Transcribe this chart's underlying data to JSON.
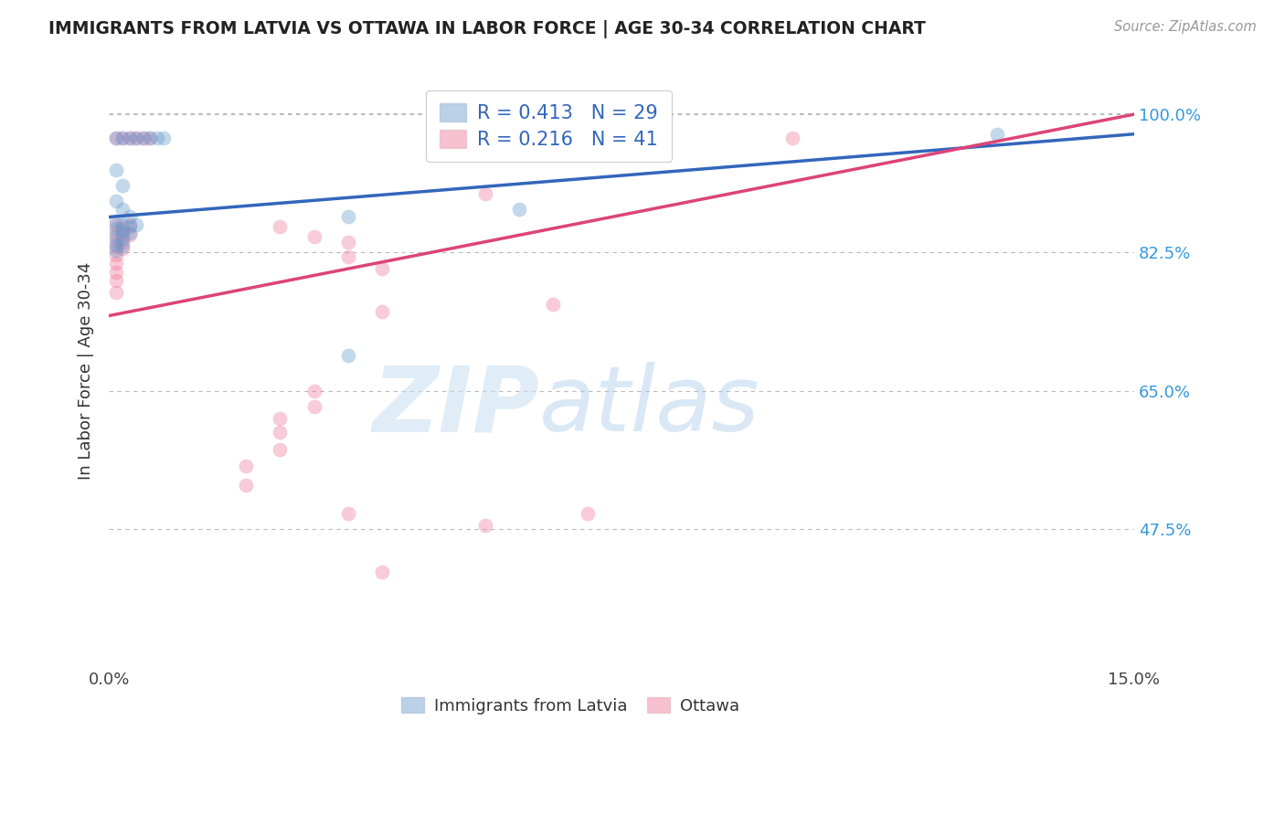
{
  "title": "IMMIGRANTS FROM LATVIA VS OTTAWA IN LABOR FORCE | AGE 30-34 CORRELATION CHART",
  "source": "Source: ZipAtlas.com",
  "ylabel": "In Labor Force | Age 30-34",
  "ytick_labels": [
    "100.0%",
    "82.5%",
    "65.0%",
    "47.5%"
  ],
  "ytick_values": [
    1.0,
    0.825,
    0.65,
    0.475
  ],
  "xmin": 0.0,
  "xmax": 0.15,
  "ymin": 0.3,
  "ymax": 1.05,
  "legend_r_labels": [
    "R = 0.413",
    "R = 0.216"
  ],
  "legend_n_labels": [
    "N = 29",
    "N = 41"
  ],
  "blue_scatter": [
    [
      0.001,
      0.97
    ],
    [
      0.002,
      0.97
    ],
    [
      0.003,
      0.97
    ],
    [
      0.004,
      0.97
    ],
    [
      0.005,
      0.97
    ],
    [
      0.006,
      0.97
    ],
    [
      0.007,
      0.97
    ],
    [
      0.008,
      0.97
    ],
    [
      0.001,
      0.93
    ],
    [
      0.002,
      0.91
    ],
    [
      0.001,
      0.89
    ],
    [
      0.002,
      0.88
    ],
    [
      0.001,
      0.865
    ],
    [
      0.002,
      0.86
    ],
    [
      0.003,
      0.858
    ],
    [
      0.001,
      0.855
    ],
    [
      0.002,
      0.852
    ],
    [
      0.003,
      0.85
    ],
    [
      0.001,
      0.845
    ],
    [
      0.002,
      0.843
    ],
    [
      0.001,
      0.835
    ],
    [
      0.002,
      0.833
    ],
    [
      0.001,
      0.828
    ],
    [
      0.003,
      0.87
    ],
    [
      0.004,
      0.86
    ],
    [
      0.035,
      0.87
    ],
    [
      0.06,
      0.88
    ],
    [
      0.035,
      0.695
    ],
    [
      0.13,
      0.975
    ]
  ],
  "pink_scatter": [
    [
      0.001,
      0.97
    ],
    [
      0.002,
      0.97
    ],
    [
      0.003,
      0.97
    ],
    [
      0.004,
      0.97
    ],
    [
      0.005,
      0.97
    ],
    [
      0.006,
      0.97
    ],
    [
      0.001,
      0.86
    ],
    [
      0.002,
      0.855
    ],
    [
      0.003,
      0.86
    ],
    [
      0.001,
      0.85
    ],
    [
      0.002,
      0.848
    ],
    [
      0.003,
      0.848
    ],
    [
      0.001,
      0.84
    ],
    [
      0.002,
      0.838
    ],
    [
      0.001,
      0.832
    ],
    [
      0.002,
      0.83
    ],
    [
      0.001,
      0.822
    ],
    [
      0.001,
      0.812
    ],
    [
      0.001,
      0.8
    ],
    [
      0.001,
      0.79
    ],
    [
      0.001,
      0.775
    ],
    [
      0.025,
      0.858
    ],
    [
      0.03,
      0.845
    ],
    [
      0.035,
      0.838
    ],
    [
      0.035,
      0.82
    ],
    [
      0.04,
      0.805
    ],
    [
      0.04,
      0.75
    ],
    [
      0.03,
      0.65
    ],
    [
      0.03,
      0.63
    ],
    [
      0.025,
      0.615
    ],
    [
      0.025,
      0.598
    ],
    [
      0.025,
      0.575
    ],
    [
      0.02,
      0.555
    ],
    [
      0.02,
      0.53
    ],
    [
      0.035,
      0.495
    ],
    [
      0.07,
      0.495
    ],
    [
      0.055,
      0.48
    ],
    [
      0.04,
      0.42
    ],
    [
      0.1,
      0.97
    ],
    [
      0.055,
      0.9
    ],
    [
      0.065,
      0.76
    ]
  ],
  "blue_line_x": [
    0.0,
    0.15
  ],
  "blue_line_y": [
    0.87,
    0.975
  ],
  "pink_line_x": [
    0.0,
    0.15
  ],
  "pink_line_y": [
    0.745,
    1.0
  ],
  "watermark_zip": "ZIP",
  "watermark_atlas": "atlas",
  "scatter_size": 130,
  "scatter_alpha": 0.38,
  "blue_color": "#6699cc",
  "pink_color": "#ee7799",
  "line_blue_color": "#3366bb",
  "line_pink_color": "#dd4477",
  "grid_color": "#bbbbbb",
  "background_color": "#ffffff",
  "title_color": "#222222",
  "ylabel_color": "#333333",
  "ytick_color": "#3399dd",
  "source_color": "#999999"
}
